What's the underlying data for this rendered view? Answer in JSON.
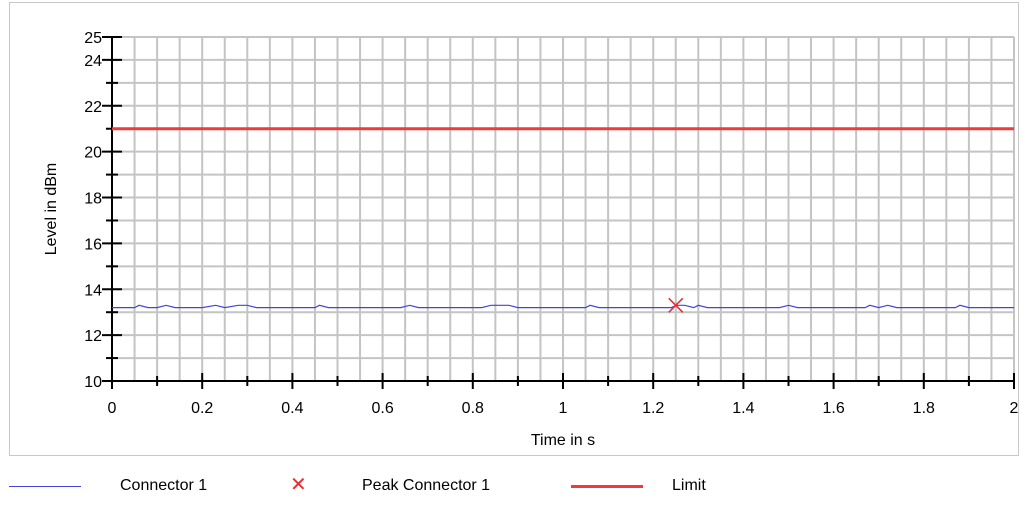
{
  "chart_data": {
    "type": "line",
    "xlabel": "Time in s",
    "ylabel": "Level in dBm",
    "xlim": [
      0,
      2
    ],
    "ylim": [
      10,
      25
    ],
    "x_ticks": [
      "0",
      "0.2",
      "0.4",
      "0.6",
      "0.8",
      "1",
      "1.2",
      "1.4",
      "1.6",
      "1.8",
      "2"
    ],
    "y_ticks": [
      "10",
      "12",
      "14",
      "16",
      "18",
      "20",
      "22",
      "24",
      "25"
    ],
    "grid": true,
    "legend_position": "bottom",
    "series": [
      {
        "name": "Connector 1",
        "color": "#4444dd",
        "x": [
          0,
          0.05,
          0.06,
          0.08,
          0.1,
          0.12,
          0.14,
          0.2,
          0.23,
          0.25,
          0.28,
          0.3,
          0.32,
          0.45,
          0.46,
          0.48,
          0.64,
          0.66,
          0.68,
          0.82,
          0.84,
          0.88,
          0.9,
          1.05,
          1.06,
          1.08,
          1.24,
          1.25,
          1.27,
          1.29,
          1.3,
          1.32,
          1.48,
          1.5,
          1.52,
          1.67,
          1.68,
          1.7,
          1.72,
          1.74,
          1.87,
          1.88,
          1.9,
          2
        ],
        "y": [
          13.2,
          13.2,
          13.3,
          13.2,
          13.2,
          13.3,
          13.2,
          13.2,
          13.3,
          13.2,
          13.3,
          13.3,
          13.2,
          13.2,
          13.3,
          13.2,
          13.2,
          13.3,
          13.2,
          13.2,
          13.3,
          13.3,
          13.2,
          13.2,
          13.3,
          13.2,
          13.2,
          13.3,
          13.3,
          13.2,
          13.3,
          13.2,
          13.2,
          13.3,
          13.2,
          13.2,
          13.3,
          13.2,
          13.3,
          13.2,
          13.2,
          13.3,
          13.2,
          13.2
        ]
      },
      {
        "name": "Peak Connector 1",
        "color": "#e53030",
        "marker": "x",
        "x": [
          1.25
        ],
        "y": [
          13.3
        ]
      },
      {
        "name": "Limit",
        "color": "#ee3b3b",
        "x": [
          0,
          2
        ],
        "y": [
          21,
          21
        ]
      }
    ]
  },
  "legend": {
    "connector": "Connector 1",
    "peak": "Peak Connector 1",
    "limit": "Limit",
    "peak_symbol": "✕"
  }
}
